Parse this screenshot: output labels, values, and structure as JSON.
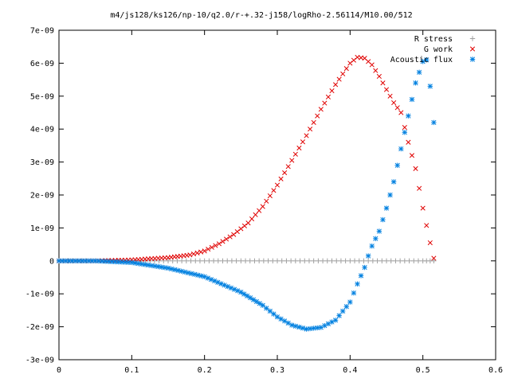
{
  "chart_data": {
    "type": "scatter",
    "title": "m4/js128/ks126/np-10/q2.0/r-+.32-j158/logRho-2.56114/M10.00/512",
    "xlabel": "",
    "ylabel": "",
    "xlim": [
      0,
      0.6
    ],
    "ylim": [
      -3e-09,
      7e-09
    ],
    "grid": false,
    "legend_position": "top-right",
    "x_ticks": [
      "0",
      "0.1",
      "0.2",
      "0.3",
      "0.4",
      "0.5",
      "0.6"
    ],
    "y_ticks": [
      "-3e-09",
      "-2e-09",
      "-1e-09",
      "0",
      "1e-09",
      "2e-09",
      "3e-09",
      "4e-09",
      "5e-09",
      "6e-09",
      "7e-09"
    ],
    "x_tick_values": [
      0,
      0.1,
      0.2,
      0.3,
      0.4,
      0.5,
      0.6
    ],
    "y_tick_values": [
      -3e-09,
      -2e-09,
      -1e-09,
      0,
      1e-09,
      2e-09,
      3e-09,
      4e-09,
      5e-09,
      6e-09,
      7e-09
    ],
    "series": [
      {
        "name": "R stress",
        "marker": "+",
        "color": "#a0a0a0",
        "points": [
          [
            0.0,
            0
          ],
          [
            0.05,
            0
          ],
          [
            0.1,
            0
          ],
          [
            0.15,
            0
          ],
          [
            0.2,
            0
          ],
          [
            0.25,
            0
          ],
          [
            0.3,
            0
          ],
          [
            0.35,
            0
          ],
          [
            0.4,
            0
          ],
          [
            0.45,
            0
          ],
          [
            0.5,
            0
          ],
          [
            0.515,
            0
          ]
        ]
      },
      {
        "name": "G work",
        "marker": "x",
        "color": "#e00000",
        "points": [
          [
            0.0,
            0
          ],
          [
            0.05,
            0
          ],
          [
            0.1,
            3e-11
          ],
          [
            0.15,
            1e-10
          ],
          [
            0.18,
            1.8e-10
          ],
          [
            0.2,
            3e-10
          ],
          [
            0.22,
            5.2e-10
          ],
          [
            0.24,
            8e-10
          ],
          [
            0.26,
            1.15e-09
          ],
          [
            0.28,
            1.65e-09
          ],
          [
            0.3,
            2.3e-09
          ],
          [
            0.32,
            3.05e-09
          ],
          [
            0.34,
            3.8e-09
          ],
          [
            0.36,
            4.6e-09
          ],
          [
            0.38,
            5.35e-09
          ],
          [
            0.4,
            6e-09
          ],
          [
            0.41,
            6.18e-09
          ],
          [
            0.42,
            6.15e-09
          ],
          [
            0.43,
            5.95e-09
          ],
          [
            0.44,
            5.6e-09
          ],
          [
            0.46,
            4.8e-09
          ],
          [
            0.47,
            4.5e-09
          ],
          [
            0.48,
            3.6e-09
          ],
          [
            0.49,
            2.8e-09
          ],
          [
            0.5,
            1.6e-09
          ],
          [
            0.51,
            5.5e-10
          ],
          [
            0.515,
            8e-11
          ]
        ]
      },
      {
        "name": "Acoustic flux",
        "marker": "*",
        "color": "#0080e0",
        "points": [
          [
            0.0,
            0
          ],
          [
            0.05,
            0
          ],
          [
            0.1,
            -5e-11
          ],
          [
            0.15,
            -2.2e-10
          ],
          [
            0.2,
            -4.8e-10
          ],
          [
            0.25,
            -9.5e-10
          ],
          [
            0.28,
            -1.35e-09
          ],
          [
            0.3,
            -1.7e-09
          ],
          [
            0.32,
            -1.95e-09
          ],
          [
            0.34,
            -2.07e-09
          ],
          [
            0.36,
            -2.02e-09
          ],
          [
            0.38,
            -1.8e-09
          ],
          [
            0.4,
            -1.25e-09
          ],
          [
            0.41,
            -7e-10
          ],
          [
            0.42,
            -2e-10
          ],
          [
            0.425,
            1.5e-10
          ],
          [
            0.43,
            4.5e-10
          ],
          [
            0.44,
            9e-10
          ],
          [
            0.45,
            1.6e-09
          ],
          [
            0.46,
            2.4e-09
          ],
          [
            0.47,
            3.4e-09
          ],
          [
            0.48,
            4.4e-09
          ],
          [
            0.49,
            5.4e-09
          ],
          [
            0.5,
            6.05e-09
          ],
          [
            0.505,
            6.1e-09
          ],
          [
            0.51,
            5.3e-09
          ],
          [
            0.515,
            4.2e-09
          ]
        ]
      }
    ]
  }
}
